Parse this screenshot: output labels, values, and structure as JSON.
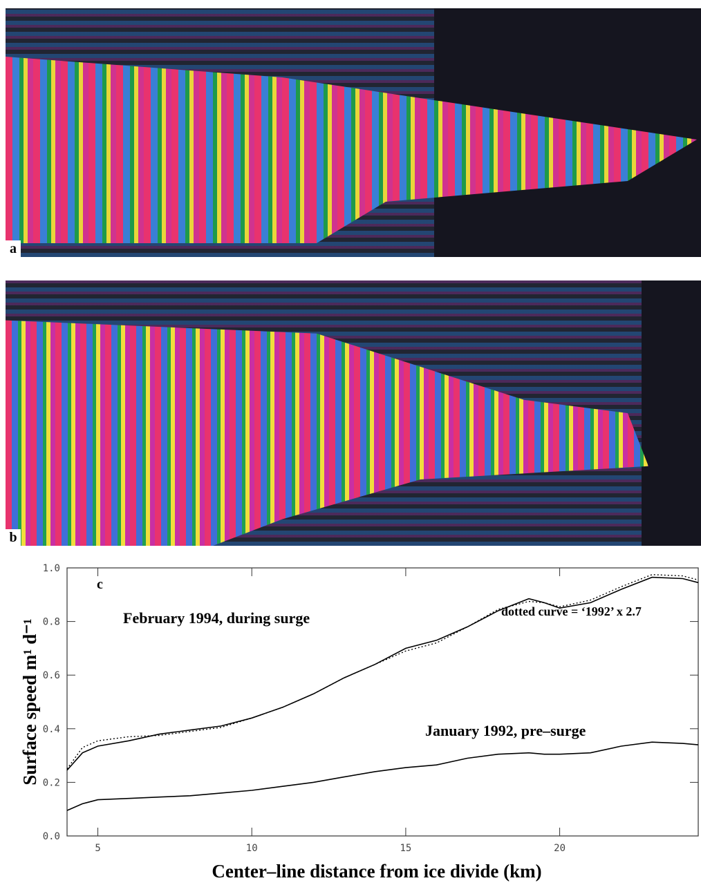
{
  "panels": [
    {
      "label": "a"
    },
    {
      "label": "b"
    }
  ],
  "chart_data": {
    "type": "line",
    "panel_label": "c",
    "x_label": "Center–line distance from ice divide (km)",
    "y_label": "Surface speed m¹ d⁻¹",
    "x": [
      4,
      4.5,
      5,
      6,
      7,
      8,
      9,
      10,
      11,
      12,
      13,
      14,
      15,
      16,
      17,
      18,
      19,
      19.5,
      20,
      21,
      22,
      23,
      24,
      24.5
    ],
    "series": [
      {
        "name": "February 1994, during surge",
        "color": "#000000",
        "style": "solid",
        "values": [
          0.245,
          0.31,
          0.335,
          0.355,
          0.38,
          0.395,
          0.41,
          0.44,
          0.48,
          0.53,
          0.59,
          0.64,
          0.7,
          0.73,
          0.78,
          0.84,
          0.885,
          0.87,
          0.85,
          0.87,
          0.92,
          0.965,
          0.96,
          0.945
        ]
      },
      {
        "name": "January 1992, pre–surge",
        "color": "#000000",
        "style": "solid",
        "values": [
          0.095,
          0.12,
          0.135,
          0.14,
          0.145,
          0.15,
          0.16,
          0.17,
          0.185,
          0.2,
          0.22,
          0.24,
          0.255,
          0.265,
          0.29,
          0.305,
          0.31,
          0.305,
          0.305,
          0.31,
          0.335,
          0.35,
          0.345,
          0.34
        ]
      },
      {
        "name": "dotted curve = ‘1992’ x 2.7",
        "color": "#000000",
        "style": "dotted",
        "values": [
          0.25,
          0.33,
          0.355,
          0.37,
          0.375,
          0.39,
          0.405,
          0.44,
          0.48,
          0.53,
          0.59,
          0.64,
          0.69,
          0.72,
          0.78,
          0.845,
          0.875,
          0.87,
          0.855,
          0.88,
          0.93,
          0.975,
          0.97,
          0.955
        ]
      }
    ],
    "xlim": [
      4,
      24.5
    ],
    "ylim": [
      0,
      1
    ],
    "xticks": [
      5,
      10,
      15,
      20
    ],
    "yticks": [
      {
        "value": 0,
        "label": "0.0"
      },
      0.2,
      0.4,
      0.6,
      0.8,
      {
        "value": 1,
        "label": "1.0"
      }
    ],
    "grid": false
  }
}
